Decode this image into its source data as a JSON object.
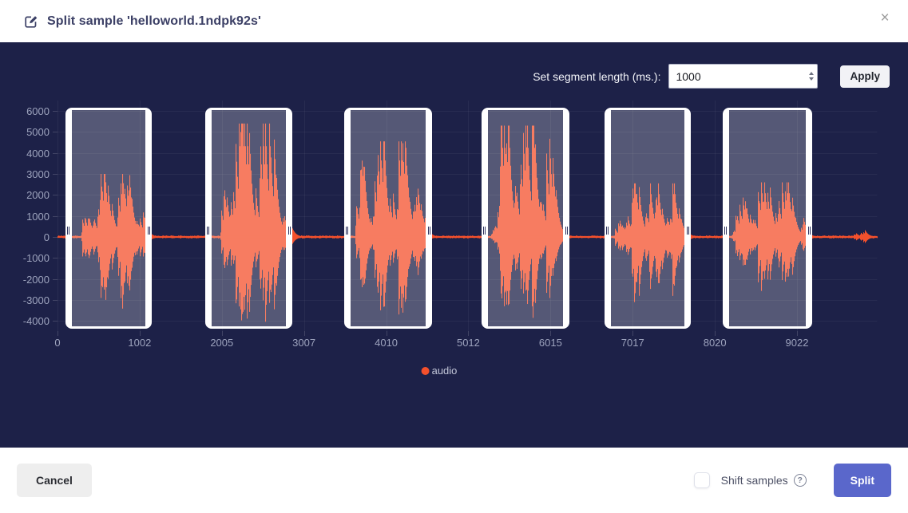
{
  "dialog": {
    "title": "Split sample 'helloworld.1ndpk92s'",
    "close_glyph": "×"
  },
  "controls": {
    "segment_length_label": "Set segment length (ms.):",
    "segment_length_value": "1000",
    "apply_label": "Apply"
  },
  "chart_data": {
    "type": "area",
    "title": "",
    "xlabel": "",
    "ylabel": "",
    "x_unit": "ms",
    "x_range_ms": [
      0,
      10000
    ],
    "y_range": [
      -4500,
      6500
    ],
    "x_ticks": [
      0,
      1002,
      2005,
      3007,
      4010,
      5012,
      6015,
      7017,
      8020,
      9022
    ],
    "y_ticks": [
      6000,
      5000,
      4000,
      3000,
      2000,
      1000,
      0,
      -1000,
      -2000,
      -3000,
      -4000
    ],
    "grid": true,
    "legend": {
      "label": "audio",
      "position": "bottom-center",
      "marker_color": "#f4502c"
    },
    "series": [
      {
        "name": "audio",
        "color": "#f4502c",
        "baseline": 0
      }
    ],
    "segments_ms": [
      {
        "start": 97,
        "end": 1150
      },
      {
        "start": 1802,
        "end": 2864
      },
      {
        "start": 3498,
        "end": 4569
      },
      {
        "start": 5173,
        "end": 6245
      },
      {
        "start": 6673,
        "end": 7726
      },
      {
        "start": 8115,
        "end": 9207
      }
    ],
    "bursts": [
      {
        "start": 290,
        "end": 1080,
        "peak_pos": 3000,
        "peak_neg": 2900,
        "peak_at": 0.38,
        "lobes": 10,
        "phase": 1.1
      },
      {
        "start": 1985,
        "end": 2830,
        "peak_pos": 5400,
        "peak_neg": 3800,
        "peak_at": 0.4,
        "lobes": 9,
        "phase": 2.3
      },
      {
        "start": 3625,
        "end": 4495,
        "peak_pos": 4550,
        "peak_neg": 3200,
        "peak_at": 0.42,
        "lobes": 11,
        "phase": 0.4
      },
      {
        "start": 5285,
        "end": 6155,
        "peak_pos": 5300,
        "peak_neg": 3250,
        "peak_at": 0.35,
        "lobes": 10,
        "phase": 4.0
      },
      {
        "start": 6790,
        "end": 7700,
        "peak_pos": 2550,
        "peak_neg": 2650,
        "peak_at": 0.5,
        "lobes": 12,
        "phase": 2.0
      },
      {
        "start": 8210,
        "end": 9140,
        "peak_pos": 2600,
        "peak_neg": 2300,
        "peak_at": 0.55,
        "lobes": 11,
        "phase": 5.1
      },
      {
        "start": 9690,
        "end": 9910,
        "peak_pos": 320,
        "peak_neg": 320,
        "peak_at": 0.5,
        "lobes": 6,
        "phase": 0
      }
    ]
  },
  "footer": {
    "cancel_label": "Cancel",
    "shift_samples_label": "Shift samples",
    "shift_samples_checked": false,
    "help_glyph": "?",
    "split_label": "Split"
  },
  "colors": {
    "waveform": "#f4502c",
    "panel_bg": "#1d2148",
    "segment_fill": "rgba(255,255,255,0.25)",
    "segment_border": "#ffffff",
    "segment_handle": "#2e3360",
    "split_button": "#5a67cb",
    "title_text": "#3c4066",
    "tick_text": "#9da3bd",
    "legend_marker_inner": "#8a90a8"
  }
}
